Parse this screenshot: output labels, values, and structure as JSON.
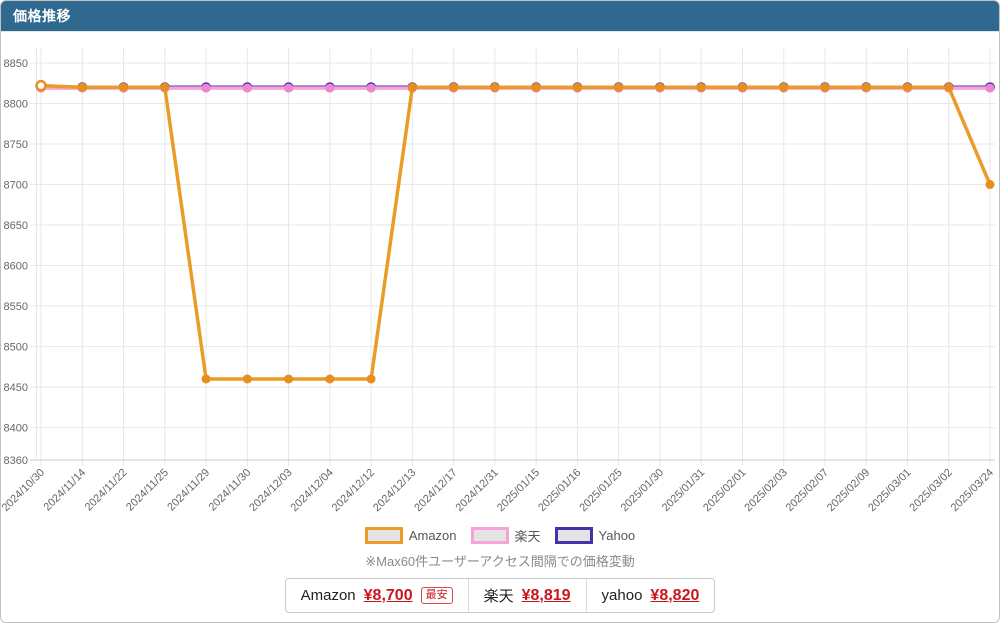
{
  "header": {
    "title": "価格推移"
  },
  "chart_data": {
    "type": "line",
    "title": "価格推移",
    "categories": [
      "2024/10/30",
      "2024/11/14",
      "2024/11/22",
      "2024/11/25",
      "2024/11/29",
      "2024/11/30",
      "2024/12/03",
      "2024/12/04",
      "2024/12/12",
      "2024/12/13",
      "2024/12/17",
      "2024/12/31",
      "2025/01/15",
      "2025/01/16",
      "2025/01/25",
      "2025/01/30",
      "2025/01/31",
      "2025/02/01",
      "2025/02/03",
      "2025/02/07",
      "2025/02/09",
      "2025/03/01",
      "2025/03/02",
      "2025/03/24"
    ],
    "series": [
      {
        "id": "amazon",
        "name": "Amazon",
        "color": "#eb9c28",
        "point_color": "#e68f1d",
        "line_width": 3.5,
        "point_radius": 4.5,
        "hollow_points": [
          0
        ],
        "values": [
          8822,
          8820,
          8820,
          8820,
          8460,
          8460,
          8460,
          8460,
          8460,
          8820,
          8820,
          8820,
          8820,
          8820,
          8820,
          8820,
          8820,
          8820,
          8820,
          8820,
          8820,
          8820,
          8820,
          8700
        ]
      },
      {
        "id": "rakuten",
        "name": "楽天",
        "color": "#f6a3da",
        "point_color": "#ee86d2",
        "line_width": 3.5,
        "point_radius": 4.5,
        "hollow_points": [],
        "values": [
          8819,
          8819,
          8819,
          8819,
          8819,
          8819,
          8819,
          8819,
          8819,
          8819,
          8819,
          8819,
          8819,
          8819,
          8819,
          8819,
          8819,
          8819,
          8819,
          8819,
          8819,
          8819,
          8819,
          8819
        ]
      },
      {
        "id": "yahoo",
        "name": "Yahoo",
        "color": "#4930ab",
        "point_color": "#4930ab",
        "line_width": 3.5,
        "point_radius": 5,
        "hollow_points": [],
        "values": [
          8820,
          8820,
          8820,
          8820,
          8820,
          8820,
          8820,
          8820,
          8820,
          8820,
          8820,
          8820,
          8820,
          8820,
          8820,
          8820,
          8820,
          8820,
          8820,
          8820,
          8820,
          8820,
          8820,
          8820
        ]
      }
    ],
    "y_ticks": [
      8850,
      8800,
      8750,
      8700,
      8650,
      8600,
      8550,
      8500,
      8450,
      8400,
      8360
    ],
    "ylim": [
      8360,
      8850
    ],
    "xlabel": "",
    "ylabel": "",
    "grid": true,
    "legend_position": "bottom"
  },
  "note": "※Max60件ユーザーアクセス間隔での価格変動",
  "price_bar": {
    "items": [
      {
        "store": "Amazon",
        "price": "¥8,700",
        "badge": "最安"
      },
      {
        "store": "楽天",
        "price": "¥8,819",
        "badge": ""
      },
      {
        "store": "yahoo",
        "price": "¥8,820",
        "badge": ""
      }
    ]
  },
  "colors": {
    "header_bg": "#30698f",
    "price_red": "#c9161d",
    "grid": "#e7e7e7",
    "axis": "#c8c8c8",
    "tick_text": "#666666",
    "legend_box_fill": "#e4e4e4"
  }
}
